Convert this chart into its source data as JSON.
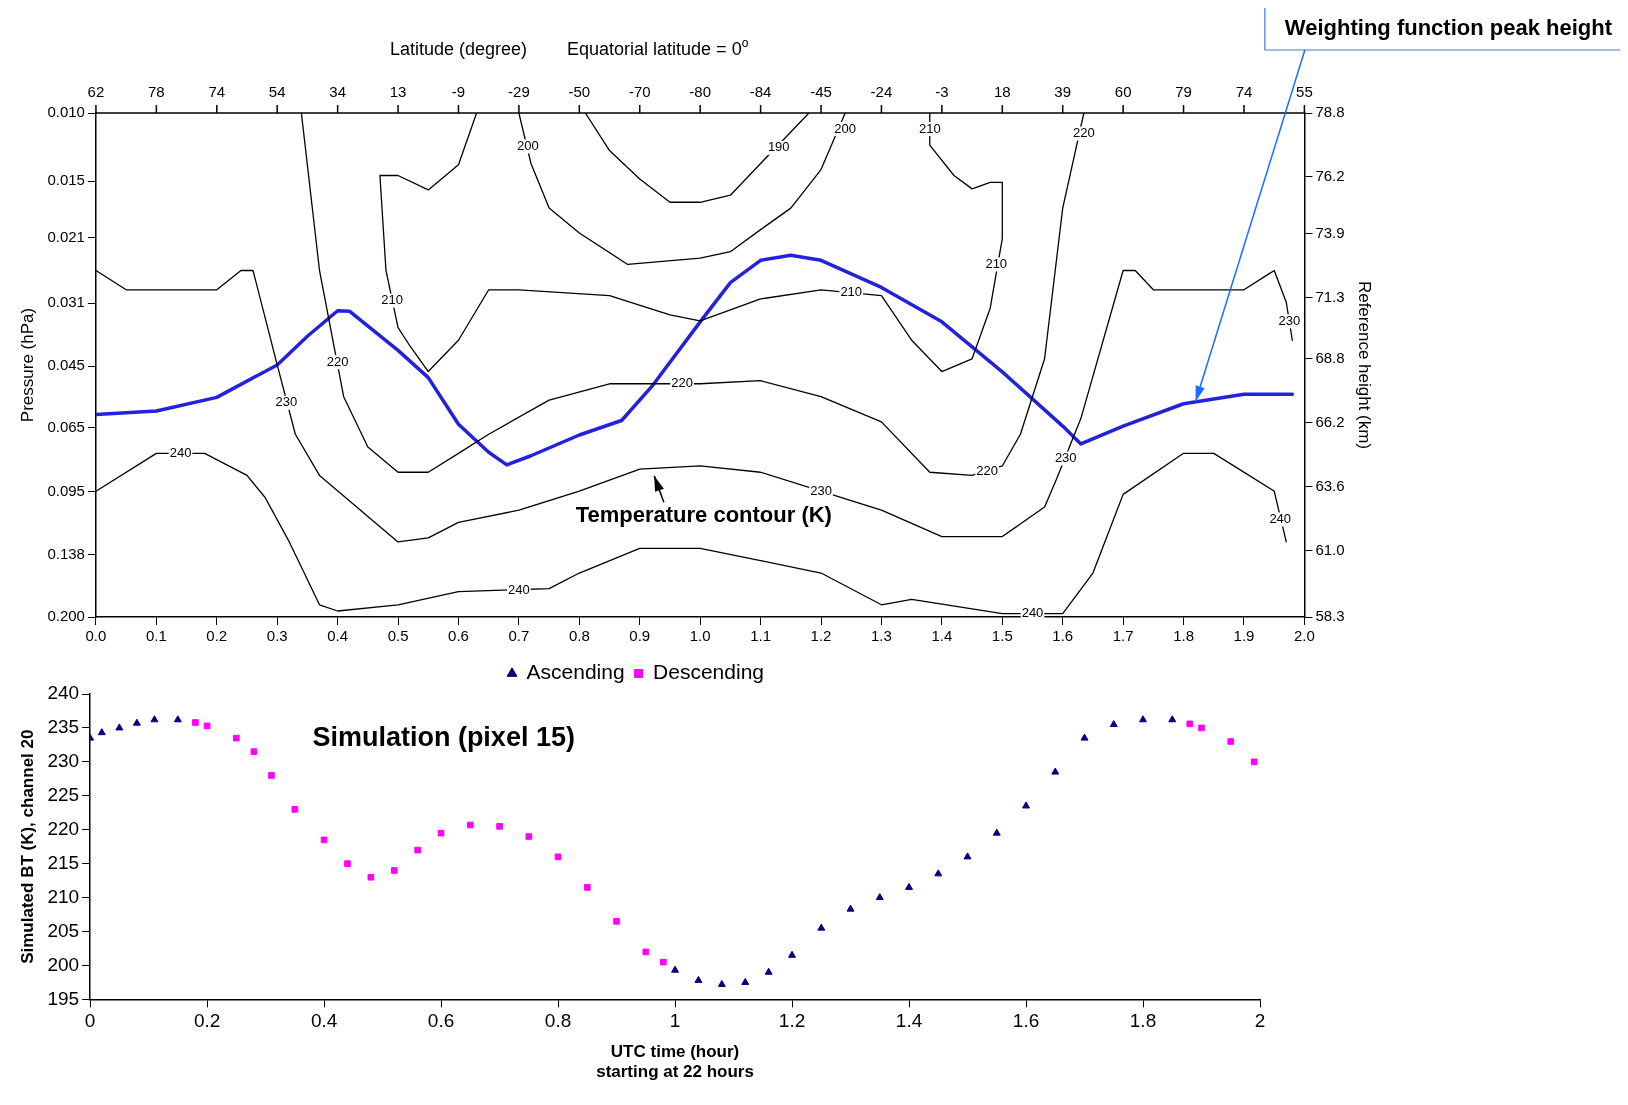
{
  "chart_data": [
    {
      "type": "line",
      "ylabel": "Pressure (hPa)",
      "y2label": "Reference height (km)",
      "annotations": [
        "Latitude (degree)",
        "Equatorial latitude = 0$^{o}$",
        "Temperature contour (K)",
        "62",
        "78",
        "74",
        "54",
        "34",
        "13",
        "-9",
        "-29",
        "-50",
        "-70",
        "-80",
        "-84",
        "-45",
        "-24",
        "-3",
        "18",
        "39",
        "60",
        "79",
        "74",
        "55",
        {
          "text": "Weighting function peak height",
          "x": 1.82,
          "y": 0.0555
        },
        {
          "text": "240",
          "x": 0.14,
          "y": 0.0756
        },
        {
          "text": "240",
          "x": 0.7,
          "y": 0.171
        },
        {
          "text": "240",
          "x": 1.55,
          "y": 0.196
        },
        {
          "text": "240",
          "x": 1.96,
          "y": 0.112
        },
        {
          "text": "230",
          "x": 0.315,
          "y": 0.056
        },
        {
          "text": "230",
          "x": 1.2,
          "y": 0.0947
        },
        {
          "text": "230",
          "x": 1.605,
          "y": 0.078
        },
        {
          "text": "230",
          "x": 1.975,
          "y": 0.0345
        },
        {
          "text": "220",
          "x": 0.4,
          "y": 0.044
        },
        {
          "text": "220",
          "x": 0.97,
          "y": 0.05
        },
        {
          "text": "220",
          "x": 1.475,
          "y": 0.084
        },
        {
          "text": "220",
          "x": 1.635,
          "y": 0.0113
        },
        {
          "text": "210",
          "x": 0.49,
          "y": 0.0305
        },
        {
          "text": "210",
          "x": 1.25,
          "y": 0.029
        },
        {
          "text": "210",
          "x": 1.49,
          "y": 0.0246
        },
        {
          "text": "210",
          "x": 1.38,
          "y": 0.011
        },
        {
          "text": "200",
          "x": 0.715,
          "y": 0.0122
        },
        {
          "text": "200",
          "x": 1.24,
          "y": 0.011
        },
        {
          "text": "190",
          "x": 1.13,
          "y": 0.0123
        }
      ],
      "xlim": [
        0,
        2
      ],
      "xticks": [
        {
          "value": 0,
          "label": "0.0"
        },
        {
          "value": 0.1,
          "label": "0.1"
        },
        {
          "value": 0.2,
          "label": "0.2"
        },
        {
          "value": 0.3,
          "label": "0.3"
        },
        {
          "value": 0.4,
          "label": "0.4"
        },
        {
          "value": 0.5,
          "label": "0.5"
        },
        {
          "value": 0.6,
          "label": "0.6"
        },
        {
          "value": 0.7,
          "label": "0.7"
        },
        {
          "value": 0.8,
          "label": "0.8"
        },
        {
          "value": 0.9,
          "label": "0.9"
        },
        {
          "value": 1,
          "label": "1.0"
        },
        {
          "value": 1.1,
          "label": "1.1"
        },
        {
          "value": 1.2,
          "label": "1.2"
        },
        {
          "value": 1.3,
          "label": "1.3"
        },
        {
          "value": 1.4,
          "label": "1.4"
        },
        {
          "value": 1.5,
          "label": "1.5"
        },
        {
          "value": 1.6,
          "label": "1.6"
        },
        {
          "value": 1.7,
          "label": "1.7"
        },
        {
          "value": 1.8,
          "label": "1.8"
        },
        {
          "value": 1.9,
          "label": "1.9"
        },
        {
          "value": 2,
          "label": "2.0"
        }
      ],
      "ylim": [
        0.2,
        0.01
      ],
      "yticks": [
        {
          "value": 0.01,
          "label": "0.010"
        },
        {
          "value": 0.015,
          "label": "0.015"
        },
        {
          "value": 0.021,
          "label": "0.021"
        },
        {
          "value": 0.031,
          "label": "0.031"
        },
        {
          "value": 0.045,
          "label": "0.045"
        },
        {
          "value": 0.065,
          "label": "0.065"
        },
        {
          "value": 0.095,
          "label": "0.095"
        },
        {
          "value": 0.138,
          "label": "0.138"
        },
        {
          "value": 0.2,
          "label": "0.200"
        }
      ],
      "y2lim": [
        58.3,
        78.8
      ],
      "y2ticks": [
        58.3,
        {
          "value": 61,
          "label": "61.0"
        },
        63.6,
        66.2,
        68.8,
        71.3,
        73.9,
        76.2,
        78.8
      ],
      "log": "y",
      "grid": false,
      "legend": false,
      "marker": "none",
      "line_style": "solid",
      "series": [
        {
          "color": "#000000",
          "x": [
            0,
            0.1,
            0.18,
            0.25,
            0.28,
            0.32,
            0.37,
            0.4,
            0.5,
            0.6,
            0.75,
            0.8,
            0.9,
            1.0,
            1.1,
            1.2,
            1.3,
            1.35,
            1.5,
            1.6,
            1.65,
            1.7,
            1.8,
            1.85,
            1.95,
            1.97
          ],
          "values": [
            0.0947,
            0.0756,
            0.0756,
            0.0862,
            0.0983,
            0.128,
            0.186,
            0.193,
            0.186,
            0.172,
            0.169,
            0.154,
            0.133,
            0.133,
            0.143,
            0.154,
            0.186,
            0.18,
            0.196,
            0.196,
            0.154,
            0.0965,
            0.0756,
            0.0756,
            0.0947,
            0.128
          ]
        },
        {
          "color": "#000000",
          "x": [
            0,
            0.05,
            0.2,
            0.24,
            0.26,
            0.3,
            0.33,
            0.37,
            0.45,
            0.5,
            0.55,
            0.6,
            0.7,
            0.8,
            0.9,
            1.0,
            1.1,
            1.3,
            1.4,
            1.5,
            1.57,
            1.59,
            1.63,
            1.7,
            1.72,
            1.75,
            1.9,
            1.95,
            1.97,
            1.98
          ],
          "values": [
            0.0255,
            0.0286,
            0.0286,
            0.0255,
            0.0255,
            0.0447,
            0.0675,
            0.0862,
            0.11,
            0.128,
            0.125,
            0.114,
            0.106,
            0.0947,
            0.083,
            0.0815,
            0.0846,
            0.106,
            0.124,
            0.124,
            0.104,
            0.0879,
            0.0615,
            0.0255,
            0.0255,
            0.0286,
            0.0286,
            0.0255,
            0.0308,
            0.0386
          ]
        },
        {
          "color": "#000000",
          "x": [
            0.34,
            0.37,
            0.39,
            0.41,
            0.45,
            0.5,
            0.55,
            0.6,
            0.65,
            0.75,
            0.85,
            1.0,
            1.1,
            1.2,
            1.3,
            1.38,
            1.45,
            1.5,
            1.53,
            1.57,
            1.6,
            1.635
          ],
          "values": [
            0.01,
            0.0255,
            0.0371,
            0.054,
            0.0728,
            0.0846,
            0.0846,
            0.0756,
            0.0675,
            0.0551,
            0.05,
            0.05,
            0.0491,
            0.054,
            0.0627,
            0.0846,
            0.0862,
            0.0815,
            0.0675,
            0.0431,
            0.0176,
            0.01
          ]
        },
        {
          "color": "#000000",
          "x": [
            0.63,
            0.6,
            0.55,
            0.5,
            0.47,
            0.48,
            0.5,
            0.52,
            0.55,
            0.6,
            0.65,
            0.7,
            0.85,
            0.95,
            1.0,
            1.1,
            1.2,
            1.3,
            1.35,
            1.4,
            1.45,
            1.48,
            1.5,
            1.5,
            1.48,
            1.45,
            1.42,
            1.38,
            1.38
          ],
          "values": [
            0.01,
            0.0136,
            0.0158,
            0.0145,
            0.0145,
            0.0255,
            0.0358,
            0.04,
            0.0465,
            0.0386,
            0.0286,
            0.0286,
            0.0296,
            0.0332,
            0.0344,
            0.0302,
            0.0286,
            0.0296,
            0.0386,
            0.0465,
            0.0431,
            0.0319,
            0.0211,
            0.0151,
            0.0151,
            0.0157,
            0.0145,
            0.0121,
            0.01
          ]
        },
        {
          "color": "#000000",
          "x": [
            0.7,
            0.72,
            0.75,
            0.8,
            0.88,
            1.0,
            1.05,
            1.1,
            1.15,
            1.2,
            1.24
          ],
          "values": [
            0.01,
            0.0135,
            0.0176,
            0.0204,
            0.0246,
            0.0237,
            0.0228,
            0.02,
            0.0176,
            0.014,
            0.01
          ]
        },
        {
          "color": "#000000",
          "x": [
            0.81,
            0.85,
            0.9,
            0.95,
            1.0,
            1.05,
            1.1,
            1.15,
            1.18
          ],
          "values": [
            0.01,
            0.0125,
            0.0148,
            0.017,
            0.017,
            0.0163,
            0.0135,
            0.0112,
            0.01
          ]
        },
        {
          "color": "#2222dd",
          "x": [
            0,
            0.1,
            0.2,
            0.3,
            0.35,
            0.4,
            0.42,
            0.5,
            0.55,
            0.6,
            0.65,
            0.68,
            0.72,
            0.8,
            0.87,
            0.92,
            1.0,
            1.05,
            1.1,
            1.15,
            1.2,
            1.3,
            1.4,
            1.5,
            1.6,
            1.63,
            1.7,
            1.8,
            1.9,
            1.98
          ],
          "values": [
            0.06,
            0.0588,
            0.0542,
            0.0447,
            0.0377,
            0.0324,
            0.0325,
            0.041,
            0.0482,
            0.0636,
            0.0751,
            0.081,
            0.0767,
            0.0678,
            0.0622,
            0.0508,
            0.0346,
            0.0274,
            0.024,
            0.0233,
            0.024,
            0.0282,
            0.0346,
            0.0466,
            0.0643,
            0.0715,
            0.0643,
            0.0563,
            0.0532,
            0.0532
          ]
        }
      ]
    },
    {
      "type": "scatter",
      "xlabel": "UTC time (hour)\nstarting at 22 hours",
      "ylabel": "Simulated BT (K), channel 20",
      "annotations": [
        "Simulation (pixel 15)"
      ],
      "xlim": [
        0,
        2
      ],
      "xticks": [
        0,
        0.2,
        0.4,
        0.6,
        0.8,
        1,
        1.2,
        1.4,
        1.6,
        1.8,
        2
      ],
      "ylim": [
        195,
        240
      ],
      "yticks": [
        195,
        200,
        205,
        210,
        215,
        220,
        225,
        230,
        235,
        240
      ],
      "grid": false,
      "legend": "top",
      "series": [
        {
          "name": "Ascending",
          "color": "#000080",
          "marker": "triangle",
          "x": [
            0,
            0.02,
            0.05,
            0.08,
            0.11,
            0.15,
            1.0,
            1.04,
            1.08,
            1.12,
            1.16,
            1.2,
            1.25,
            1.3,
            1.35,
            1.4,
            1.45,
            1.5,
            1.55,
            1.6,
            1.65,
            1.7,
            1.75,
            1.8,
            1.85
          ],
          "values": [
            233.5,
            234.3,
            235,
            235.7,
            236.2,
            236.2,
            199.3,
            197.8,
            197.2,
            197.5,
            199,
            201.5,
            205.5,
            208.3,
            210,
            211.5,
            213.5,
            216,
            219.5,
            223.5,
            228.5,
            233.5,
            235.5,
            236.2,
            236.2
          ]
        },
        {
          "name": "Descending",
          "color": "#ff00ff",
          "marker": "square",
          "x": [
            0.18,
            0.2,
            0.25,
            0.28,
            0.31,
            0.35,
            0.4,
            0.44,
            0.48,
            0.52,
            0.56,
            0.6,
            0.65,
            0.7,
            0.75,
            0.8,
            0.85,
            0.9,
            0.95,
            0.98,
            1.88,
            1.9,
            1.95,
            1.99
          ],
          "values": [
            235.8,
            235.3,
            233.5,
            231.5,
            228,
            223,
            218.5,
            215,
            213,
            214,
            217,
            219.5,
            220.7,
            220.5,
            219,
            216,
            211.5,
            206.5,
            202,
            200.5,
            235.6,
            235,
            233,
            230
          ]
        }
      ]
    }
  ]
}
